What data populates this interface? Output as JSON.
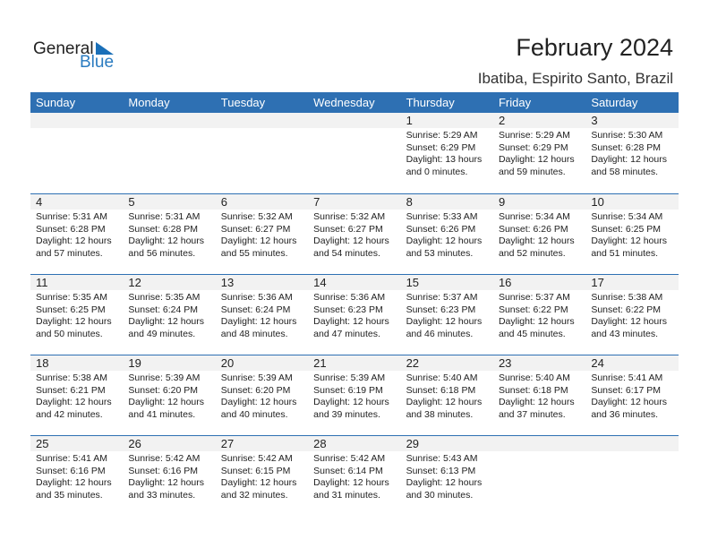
{
  "logo": {
    "text1": "General",
    "text2": "Blue"
  },
  "header": {
    "title": "February 2024",
    "location": "Ibatiba, Espirito Santo, Brazil"
  },
  "colors": {
    "accent": "#2e70b3",
    "date_strip": "#f2f2f2"
  },
  "weekdays": [
    "Sunday",
    "Monday",
    "Tuesday",
    "Wednesday",
    "Thursday",
    "Friday",
    "Saturday"
  ],
  "weeks": [
    [
      null,
      null,
      null,
      null,
      {
        "day": "1",
        "sunrise": "Sunrise: 5:29 AM",
        "sunset": "Sunset: 6:29 PM",
        "daylight1": "Daylight: 13 hours",
        "daylight2": "and 0 minutes."
      },
      {
        "day": "2",
        "sunrise": "Sunrise: 5:29 AM",
        "sunset": "Sunset: 6:29 PM",
        "daylight1": "Daylight: 12 hours",
        "daylight2": "and 59 minutes."
      },
      {
        "day": "3",
        "sunrise": "Sunrise: 5:30 AM",
        "sunset": "Sunset: 6:28 PM",
        "daylight1": "Daylight: 12 hours",
        "daylight2": "and 58 minutes."
      }
    ],
    [
      {
        "day": "4",
        "sunrise": "Sunrise: 5:31 AM",
        "sunset": "Sunset: 6:28 PM",
        "daylight1": "Daylight: 12 hours",
        "daylight2": "and 57 minutes."
      },
      {
        "day": "5",
        "sunrise": "Sunrise: 5:31 AM",
        "sunset": "Sunset: 6:28 PM",
        "daylight1": "Daylight: 12 hours",
        "daylight2": "and 56 minutes."
      },
      {
        "day": "6",
        "sunrise": "Sunrise: 5:32 AM",
        "sunset": "Sunset: 6:27 PM",
        "daylight1": "Daylight: 12 hours",
        "daylight2": "and 55 minutes."
      },
      {
        "day": "7",
        "sunrise": "Sunrise: 5:32 AM",
        "sunset": "Sunset: 6:27 PM",
        "daylight1": "Daylight: 12 hours",
        "daylight2": "and 54 minutes."
      },
      {
        "day": "8",
        "sunrise": "Sunrise: 5:33 AM",
        "sunset": "Sunset: 6:26 PM",
        "daylight1": "Daylight: 12 hours",
        "daylight2": "and 53 minutes."
      },
      {
        "day": "9",
        "sunrise": "Sunrise: 5:34 AM",
        "sunset": "Sunset: 6:26 PM",
        "daylight1": "Daylight: 12 hours",
        "daylight2": "and 52 minutes."
      },
      {
        "day": "10",
        "sunrise": "Sunrise: 5:34 AM",
        "sunset": "Sunset: 6:25 PM",
        "daylight1": "Daylight: 12 hours",
        "daylight2": "and 51 minutes."
      }
    ],
    [
      {
        "day": "11",
        "sunrise": "Sunrise: 5:35 AM",
        "sunset": "Sunset: 6:25 PM",
        "daylight1": "Daylight: 12 hours",
        "daylight2": "and 50 minutes."
      },
      {
        "day": "12",
        "sunrise": "Sunrise: 5:35 AM",
        "sunset": "Sunset: 6:24 PM",
        "daylight1": "Daylight: 12 hours",
        "daylight2": "and 49 minutes."
      },
      {
        "day": "13",
        "sunrise": "Sunrise: 5:36 AM",
        "sunset": "Sunset: 6:24 PM",
        "daylight1": "Daylight: 12 hours",
        "daylight2": "and 48 minutes."
      },
      {
        "day": "14",
        "sunrise": "Sunrise: 5:36 AM",
        "sunset": "Sunset: 6:23 PM",
        "daylight1": "Daylight: 12 hours",
        "daylight2": "and 47 minutes."
      },
      {
        "day": "15",
        "sunrise": "Sunrise: 5:37 AM",
        "sunset": "Sunset: 6:23 PM",
        "daylight1": "Daylight: 12 hours",
        "daylight2": "and 46 minutes."
      },
      {
        "day": "16",
        "sunrise": "Sunrise: 5:37 AM",
        "sunset": "Sunset: 6:22 PM",
        "daylight1": "Daylight: 12 hours",
        "daylight2": "and 45 minutes."
      },
      {
        "day": "17",
        "sunrise": "Sunrise: 5:38 AM",
        "sunset": "Sunset: 6:22 PM",
        "daylight1": "Daylight: 12 hours",
        "daylight2": "and 43 minutes."
      }
    ],
    [
      {
        "day": "18",
        "sunrise": "Sunrise: 5:38 AM",
        "sunset": "Sunset: 6:21 PM",
        "daylight1": "Daylight: 12 hours",
        "daylight2": "and 42 minutes."
      },
      {
        "day": "19",
        "sunrise": "Sunrise: 5:39 AM",
        "sunset": "Sunset: 6:20 PM",
        "daylight1": "Daylight: 12 hours",
        "daylight2": "and 41 minutes."
      },
      {
        "day": "20",
        "sunrise": "Sunrise: 5:39 AM",
        "sunset": "Sunset: 6:20 PM",
        "daylight1": "Daylight: 12 hours",
        "daylight2": "and 40 minutes."
      },
      {
        "day": "21",
        "sunrise": "Sunrise: 5:39 AM",
        "sunset": "Sunset: 6:19 PM",
        "daylight1": "Daylight: 12 hours",
        "daylight2": "and 39 minutes."
      },
      {
        "day": "22",
        "sunrise": "Sunrise: 5:40 AM",
        "sunset": "Sunset: 6:18 PM",
        "daylight1": "Daylight: 12 hours",
        "daylight2": "and 38 minutes."
      },
      {
        "day": "23",
        "sunrise": "Sunrise: 5:40 AM",
        "sunset": "Sunset: 6:18 PM",
        "daylight1": "Daylight: 12 hours",
        "daylight2": "and 37 minutes."
      },
      {
        "day": "24",
        "sunrise": "Sunrise: 5:41 AM",
        "sunset": "Sunset: 6:17 PM",
        "daylight1": "Daylight: 12 hours",
        "daylight2": "and 36 minutes."
      }
    ],
    [
      {
        "day": "25",
        "sunrise": "Sunrise: 5:41 AM",
        "sunset": "Sunset: 6:16 PM",
        "daylight1": "Daylight: 12 hours",
        "daylight2": "and 35 minutes."
      },
      {
        "day": "26",
        "sunrise": "Sunrise: 5:42 AM",
        "sunset": "Sunset: 6:16 PM",
        "daylight1": "Daylight: 12 hours",
        "daylight2": "and 33 minutes."
      },
      {
        "day": "27",
        "sunrise": "Sunrise: 5:42 AM",
        "sunset": "Sunset: 6:15 PM",
        "daylight1": "Daylight: 12 hours",
        "daylight2": "and 32 minutes."
      },
      {
        "day": "28",
        "sunrise": "Sunrise: 5:42 AM",
        "sunset": "Sunset: 6:14 PM",
        "daylight1": "Daylight: 12 hours",
        "daylight2": "and 31 minutes."
      },
      {
        "day": "29",
        "sunrise": "Sunrise: 5:43 AM",
        "sunset": "Sunset: 6:13 PM",
        "daylight1": "Daylight: 12 hours",
        "daylight2": "and 30 minutes."
      },
      null,
      null
    ]
  ]
}
